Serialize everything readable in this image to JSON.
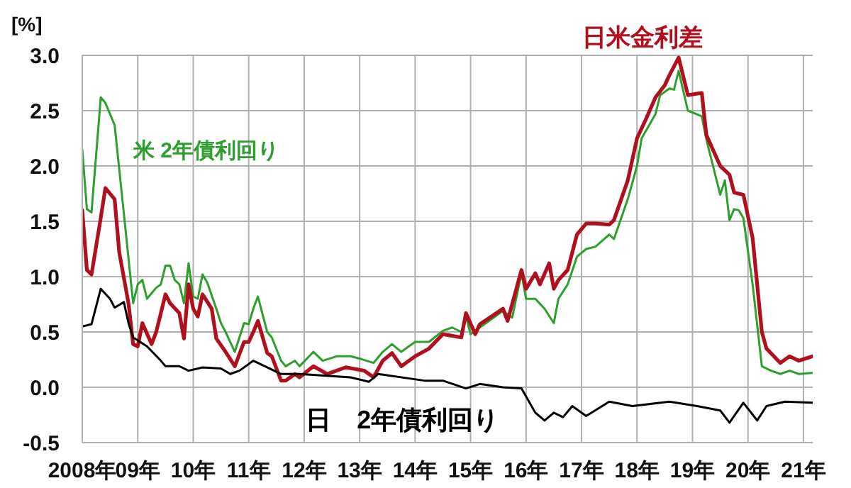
{
  "chart_data": {
    "type": "line",
    "ylabel": "[%]",
    "xlim": [
      "2008-01",
      "2021-03"
    ],
    "xticks": [
      {
        "value": "2008",
        "label": "2008年"
      },
      {
        "value": "2009",
        "label": "09年"
      },
      {
        "value": "2010",
        "label": "10年"
      },
      {
        "value": "2011",
        "label": "11年"
      },
      {
        "value": "2012",
        "label": "12年"
      },
      {
        "value": "2013",
        "label": "13年"
      },
      {
        "value": "2014",
        "label": "14年"
      },
      {
        "value": "2015",
        "label": "15年"
      },
      {
        "value": "2016",
        "label": "16年"
      },
      {
        "value": "2017",
        "label": "17年"
      },
      {
        "value": "2018",
        "label": "18年"
      },
      {
        "value": "2019",
        "label": "19年"
      },
      {
        "value": "2020",
        "label": "20年"
      },
      {
        "value": "2021",
        "label": "21年"
      }
    ],
    "ylim": [
      -0.5,
      3.0
    ],
    "yticks": [
      {
        "value": -0.5,
        "label": "-0.5"
      },
      {
        "value": 0,
        "label": "0.0"
      },
      {
        "value": 0.5,
        "label": "0.5"
      },
      {
        "value": 1,
        "label": "1.0"
      },
      {
        "value": 1.5,
        "label": "1.5"
      },
      {
        "value": 2,
        "label": "2.0"
      },
      {
        "value": 2.5,
        "label": "2.5"
      },
      {
        "value": 3,
        "label": "3.0"
      }
    ],
    "grid": true,
    "legend": false,
    "marker": "none",
    "line_style": "solid",
    "series": [
      {
        "name": "米 2年債利回り",
        "color": "#2e9e2e",
        "x": [
          "2008-01",
          "2008-02",
          "2008-03",
          "2008-05",
          "2008-06",
          "2008-08",
          "2008-10",
          "2008-12",
          "2009-01",
          "2009-02",
          "2009-03",
          "2009-05",
          "2009-06",
          "2009-07",
          "2009-08",
          "2009-09",
          "2009-10",
          "2009-11",
          "2009-12",
          "2010-01",
          "2010-02",
          "2010-03",
          "2010-04",
          "2010-06",
          "2010-07",
          "2010-08",
          "2010-10",
          "2010-12",
          "2011-01",
          "2011-02",
          "2011-03",
          "2011-05",
          "2011-06",
          "2011-08",
          "2011-09",
          "2011-11",
          "2011-12",
          "2012-03",
          "2012-05",
          "2012-08",
          "2012-11",
          "2013-01",
          "2013-04",
          "2013-06",
          "2013-08",
          "2013-10",
          "2014-01",
          "2014-04",
          "2014-07",
          "2014-09",
          "2014-11",
          "2014-12",
          "2015-01",
          "2015-04",
          "2015-08",
          "2015-10",
          "2015-12",
          "2016-01",
          "2016-03",
          "2016-05",
          "2016-07",
          "2016-08",
          "2016-10",
          "2016-12",
          "2017-02",
          "2017-04",
          "2017-07",
          "2017-08",
          "2017-11",
          "2018-01",
          "2018-02",
          "2018-05",
          "2018-06",
          "2018-08",
          "2018-09",
          "2018-10",
          "2018-12",
          "2019-03",
          "2019-04",
          "2019-07",
          "2019-08",
          "2019-09",
          "2019-10",
          "2019-11",
          "2019-12",
          "2020-02",
          "2020-04",
          "2020-06",
          "2020-08",
          "2020-10",
          "2020-12",
          "2021-03"
        ],
        "values": [
          2.15,
          1.61,
          1.58,
          2.62,
          2.57,
          2.37,
          1.57,
          0.76,
          0.93,
          0.97,
          0.8,
          0.9,
          0.93,
          1.1,
          1.1,
          0.97,
          0.93,
          0.76,
          1.12,
          0.82,
          0.8,
          1.02,
          0.95,
          0.71,
          0.58,
          0.5,
          0.32,
          0.58,
          0.57,
          0.71,
          0.82,
          0.5,
          0.45,
          0.24,
          0.19,
          0.24,
          0.19,
          0.32,
          0.24,
          0.28,
          0.28,
          0.26,
          0.22,
          0.32,
          0.39,
          0.32,
          0.41,
          0.41,
          0.51,
          0.54,
          0.5,
          0.64,
          0.48,
          0.57,
          0.69,
          0.63,
          1.03,
          0.8,
          0.8,
          0.71,
          0.58,
          0.8,
          0.93,
          1.18,
          1.25,
          1.27,
          1.38,
          1.34,
          1.7,
          2.0,
          2.25,
          2.47,
          2.64,
          2.7,
          2.69,
          2.86,
          2.5,
          2.45,
          2.24,
          1.74,
          1.87,
          1.51,
          1.61,
          1.6,
          1.53,
          0.93,
          0.19,
          0.15,
          0.12,
          0.15,
          0.12,
          0.13
        ]
      },
      {
        "name": "日米金利差",
        "color": "#b0101e",
        "x": [
          "2008-01",
          "2008-02",
          "2008-03",
          "2008-05",
          "2008-06",
          "2008-08",
          "2008-09",
          "2008-11",
          "2008-12",
          "2009-01",
          "2009-02",
          "2009-04",
          "2009-05",
          "2009-07",
          "2009-08",
          "2009-10",
          "2009-11",
          "2009-12",
          "2010-01",
          "2010-02",
          "2010-03",
          "2010-05",
          "2010-06",
          "2010-08",
          "2010-10",
          "2010-12",
          "2011-01",
          "2011-02",
          "2011-03",
          "2011-05",
          "2011-06",
          "2011-08",
          "2011-09",
          "2011-11",
          "2011-12",
          "2012-03",
          "2012-06",
          "2012-10",
          "2013-02",
          "2013-04",
          "2013-06",
          "2013-08",
          "2013-10",
          "2014-01",
          "2014-04",
          "2014-07",
          "2014-11",
          "2014-12",
          "2015-02",
          "2015-03",
          "2015-08",
          "2015-09",
          "2015-12",
          "2016-01",
          "2016-03",
          "2016-04",
          "2016-06",
          "2016-07",
          "2016-08",
          "2016-10",
          "2016-12",
          "2017-02",
          "2017-04",
          "2017-07",
          "2017-08",
          "2017-11",
          "2018-01",
          "2018-03",
          "2018-05",
          "2018-07",
          "2018-08",
          "2018-09",
          "2018-10",
          "2018-12",
          "2019-03",
          "2019-04",
          "2019-07",
          "2019-09",
          "2019-10",
          "2019-12",
          "2020-02",
          "2020-04",
          "2020-05",
          "2020-08",
          "2020-10",
          "2020-12",
          "2021-03"
        ],
        "values": [
          1.6,
          1.06,
          1.02,
          1.53,
          1.8,
          1.7,
          1.22,
          0.76,
          0.39,
          0.37,
          0.58,
          0.39,
          0.5,
          0.84,
          0.76,
          0.67,
          0.44,
          0.93,
          0.71,
          0.64,
          0.84,
          0.71,
          0.44,
          0.32,
          0.19,
          0.41,
          0.41,
          0.5,
          0.6,
          0.31,
          0.28,
          0.06,
          0.06,
          0.12,
          0.09,
          0.19,
          0.12,
          0.18,
          0.15,
          0.09,
          0.24,
          0.31,
          0.19,
          0.28,
          0.35,
          0.48,
          0.45,
          0.67,
          0.48,
          0.57,
          0.71,
          0.6,
          1.06,
          0.89,
          1.03,
          0.93,
          1.12,
          0.89,
          0.97,
          1.06,
          1.38,
          1.48,
          1.48,
          1.47,
          1.51,
          1.87,
          2.25,
          2.43,
          2.62,
          2.73,
          2.82,
          2.9,
          2.98,
          2.64,
          2.66,
          2.28,
          2.0,
          1.92,
          1.76,
          1.74,
          1.35,
          0.5,
          0.35,
          0.22,
          0.28,
          0.24,
          0.28
        ]
      },
      {
        "name": "日　2年債利回り",
        "color": "#000000",
        "x": [
          "2008-01",
          "2008-03",
          "2008-05",
          "2008-07",
          "2008-08",
          "2008-10",
          "2008-11",
          "2008-12",
          "2009-03",
          "2009-06",
          "2009-07",
          "2009-10",
          "2009-12",
          "2010-03",
          "2010-07",
          "2010-09",
          "2010-11",
          "2011-02",
          "2011-05",
          "2011-08",
          "2011-12",
          "2012-11",
          "2013-03",
          "2013-05",
          "2014-03",
          "2014-07",
          "2014-12",
          "2015-03",
          "2015-08",
          "2015-12",
          "2016-03",
          "2016-05",
          "2016-07",
          "2016-09",
          "2016-11",
          "2017-02",
          "2017-07",
          "2017-12",
          "2018-08",
          "2019-02",
          "2019-07",
          "2019-09",
          "2019-12",
          "2020-03",
          "2020-05",
          "2020-09",
          "2021-03"
        ],
        "values": [
          0.55,
          0.57,
          0.89,
          0.8,
          0.72,
          0.77,
          0.58,
          0.45,
          0.37,
          0.24,
          0.19,
          0.19,
          0.15,
          0.18,
          0.17,
          0.12,
          0.15,
          0.24,
          0.18,
          0.12,
          0.12,
          0.09,
          0.05,
          0.12,
          0.06,
          0.06,
          -0.01,
          0.03,
          0.0,
          -0.01,
          -0.23,
          -0.3,
          -0.23,
          -0.27,
          -0.17,
          -0.26,
          -0.13,
          -0.17,
          -0.13,
          -0.17,
          -0.21,
          -0.32,
          -0.14,
          -0.3,
          -0.17,
          -0.13,
          -0.14
        ]
      }
    ]
  }
}
